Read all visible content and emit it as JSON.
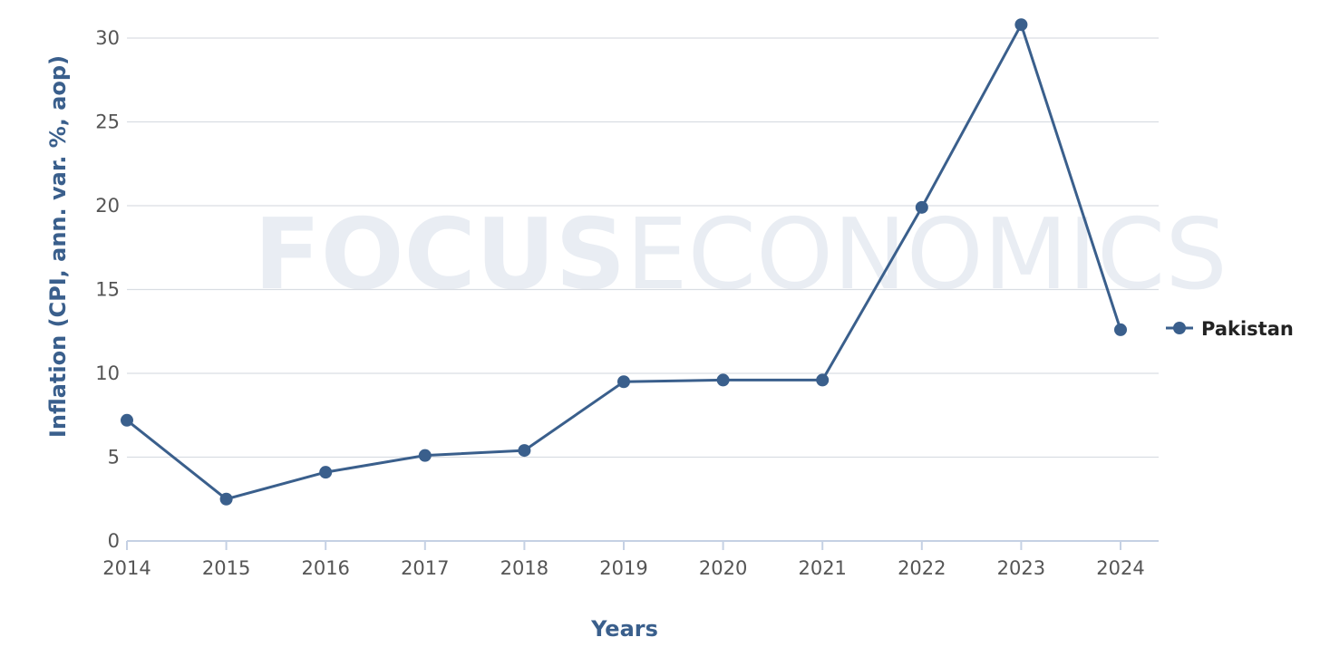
{
  "chart_data": {
    "type": "line",
    "title": "",
    "xlabel": "Years",
    "ylabel": "Inflation (CPI, ann. var. %, aop)",
    "x": [
      "2014",
      "2015",
      "2016",
      "2017",
      "2018",
      "2019",
      "2020",
      "2021",
      "2022",
      "2023",
      "2024"
    ],
    "series": [
      {
        "name": "Pakistan",
        "color": "#3a5f8c",
        "values": [
          7.2,
          2.5,
          4.1,
          5.1,
          5.4,
          9.5,
          9.6,
          9.6,
          19.9,
          30.8,
          12.6
        ]
      }
    ],
    "ylim": [
      0,
      30
    ],
    "yticks": [
      "0",
      "5",
      "10",
      "15",
      "20",
      "25",
      "30"
    ],
    "grid": true,
    "legend_position": "right",
    "watermark": {
      "bold": "FOCUS",
      "light": "ECONOMICS"
    }
  }
}
